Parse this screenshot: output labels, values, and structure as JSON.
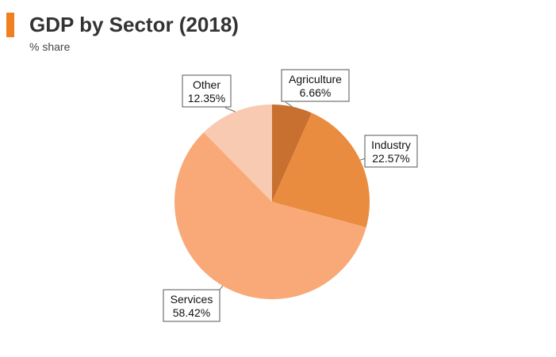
{
  "header": {
    "title": "GDP by Sector (2018)",
    "subtitle": "% share",
    "accent_color": "#f07f1f"
  },
  "chart_data": {
    "type": "pie",
    "title": "GDP by Sector (2018)",
    "subtitle": "% share",
    "legend": "none",
    "slices": [
      {
        "name": "Agriculture",
        "value": 6.66,
        "label": "6.66%",
        "color": "#c87030"
      },
      {
        "name": "Industry",
        "value": 22.57,
        "label": "22.57%",
        "color": "#ea8c3f"
      },
      {
        "name": "Services",
        "value": 58.42,
        "label": "58.42%",
        "color": "#f8a977"
      },
      {
        "name": "Other",
        "value": 12.35,
        "label": "12.35%",
        "color": "#f9cab2"
      }
    ]
  }
}
